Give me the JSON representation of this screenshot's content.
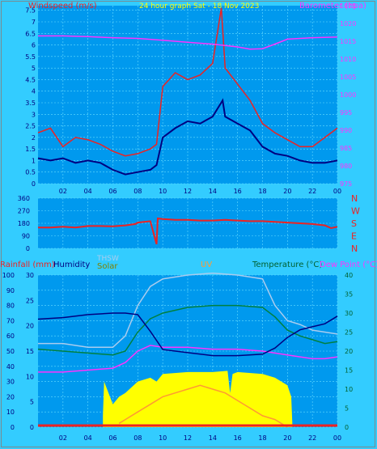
{
  "colors": {
    "background": "#33ccff",
    "plot_background": "#0099ee",
    "grid": "#66ddff",
    "wind_gust": "#ee2222",
    "wind_avg": "#000080",
    "barometer": "#ff33ff",
    "direction": "#ee2222",
    "yellow_title": "#ffff00",
    "rain": "#ee2222",
    "humidity": "#000080",
    "thsw": "#aaccee",
    "solar": "#ffff00",
    "uv": "#ff9933",
    "temperature": "#008040",
    "dew_point": "#ff33ff"
  },
  "chart_data": [
    {
      "type": "line",
      "title": "24 hour graph Sat - 18 Nov 2023",
      "ylabel_left": "Windspeed (m/s)",
      "ylabel_right": "Barometer (hpa)",
      "x_ticks": [
        "02",
        "04",
        "06",
        "08",
        "10",
        "12",
        "14",
        "16",
        "18",
        "20",
        "22",
        "00"
      ],
      "yleft_ticks": [
        "0",
        "0.5",
        "1",
        "1.5",
        "2",
        "2.5",
        "3",
        "3.5",
        "4",
        "4.5",
        "5",
        "5.5",
        "6",
        "6.5",
        "7",
        "7.5"
      ],
      "yright_ticks": [
        "975",
        "980",
        "985",
        "990",
        "995",
        "1000",
        "1005",
        "1010",
        "1015",
        "1020",
        "1025"
      ],
      "ylim_left": [
        0,
        7.7
      ],
      "ylim_right": [
        975,
        1025
      ],
      "xlim_hours": [
        0,
        24
      ],
      "series": [
        {
          "name": "Wind gust",
          "x_hours": [
            0,
            1,
            2,
            3,
            4,
            5,
            6,
            7,
            8,
            9,
            9.5,
            10,
            11,
            12,
            13,
            14,
            14.7,
            15,
            16,
            17,
            18,
            19,
            20,
            21,
            22,
            23,
            24
          ],
          "values": [
            2.2,
            2.4,
            1.6,
            2.0,
            1.9,
            1.7,
            1.4,
            1.2,
            1.3,
            1.5,
            1.7,
            4.2,
            4.8,
            4.5,
            4.7,
            5.2,
            7.6,
            5.0,
            4.3,
            3.6,
            2.6,
            2.2,
            1.9,
            1.6,
            1.6,
            2.0,
            2.4
          ]
        },
        {
          "name": "Wind average",
          "x_hours": [
            0,
            1,
            2,
            3,
            4,
            5,
            6,
            7,
            8,
            9,
            9.5,
            10,
            11,
            12,
            13,
            14,
            14.8,
            15,
            16,
            17,
            18,
            19,
            20,
            21,
            22,
            23,
            24
          ],
          "values": [
            1.1,
            1.0,
            1.1,
            0.9,
            1.0,
            0.9,
            0.6,
            0.4,
            0.5,
            0.6,
            0.8,
            2.0,
            2.4,
            2.7,
            2.6,
            2.9,
            3.6,
            2.9,
            2.6,
            2.3,
            1.6,
            1.3,
            1.2,
            1.0,
            0.9,
            0.9,
            1.0
          ]
        },
        {
          "name": "Barometer",
          "x_hours": [
            0,
            2,
            4,
            6,
            8,
            10,
            12,
            14,
            16,
            17,
            18,
            19,
            20,
            22,
            24
          ],
          "values": [
            1016.5,
            1016.5,
            1016.3,
            1016.0,
            1015.8,
            1015.3,
            1014.7,
            1014.2,
            1013.4,
            1012.8,
            1012.9,
            1014.2,
            1015.6,
            1016.0,
            1016.2
          ]
        }
      ]
    },
    {
      "type": "scatter",
      "yright_label_ticks": [
        "N",
        "W",
        "S",
        "E",
        "N"
      ],
      "yleft_ticks": [
        "0",
        "90",
        "180",
        "270",
        "360"
      ],
      "ylim": [
        0,
        360
      ],
      "xlim_hours": [
        0,
        24
      ],
      "series": [
        {
          "name": "Wind direction",
          "x_hours": [
            0,
            1,
            2,
            3,
            4,
            5,
            6,
            7,
            7.8,
            8,
            9,
            9.5,
            9.6,
            10,
            11,
            12,
            13,
            14,
            15,
            16,
            17,
            18,
            19,
            20,
            21,
            22,
            23,
            23.5,
            24
          ],
          "values": [
            150,
            150,
            155,
            150,
            160,
            160,
            158,
            165,
            175,
            185,
            195,
            30,
            215,
            210,
            205,
            205,
            200,
            200,
            205,
            200,
            195,
            195,
            190,
            185,
            180,
            175,
            165,
            145,
            155
          ]
        }
      ]
    },
    {
      "type": "line",
      "ylabels": {
        "rain": "Rainfall (mm)",
        "humidity": "Humidity",
        "thsw": "THSW",
        "solar": "Solar",
        "uv": "UV",
        "temperature": "Temperature (°C)",
        "dew_point": "Dew Point (°C)"
      },
      "y_humidity_ticks": [
        "0",
        "10",
        "20",
        "30",
        "40",
        "50",
        "60",
        "70",
        "80",
        "90",
        "100"
      ],
      "y_rain_ticks": [
        "0",
        "5",
        "10",
        "15",
        "20",
        "25",
        "30"
      ],
      "y_temp_ticks": [
        "0",
        "5",
        "10",
        "15",
        "20",
        "25",
        "30",
        "35",
        "40"
      ],
      "x_ticks": [
        "02",
        "04",
        "06",
        "08",
        "10",
        "12",
        "14",
        "16",
        "18",
        "20",
        "22",
        "00"
      ],
      "xlim_hours": [
        0,
        24
      ],
      "ylim_humidity": [
        0,
        100
      ],
      "ylim_temp": [
        0,
        40
      ],
      "series": [
        {
          "name": "Humidity",
          "x_hours": [
            0,
            2,
            4,
            6,
            7,
            8,
            9,
            10,
            12,
            14,
            16,
            18,
            19,
            20,
            21,
            22,
            23,
            24
          ],
          "values": [
            71,
            72,
            74,
            75,
            75,
            74,
            63,
            51,
            49,
            47,
            47,
            48,
            52,
            59,
            64,
            66,
            68,
            73
          ]
        },
        {
          "name": "Temperature",
          "x_hours": [
            0,
            2,
            4,
            6,
            7,
            8,
            9,
            10,
            12,
            14,
            16,
            18,
            19,
            20,
            21,
            22,
            23,
            24
          ],
          "values": [
            20.5,
            20,
            19.5,
            19,
            20,
            25,
            28.5,
            30,
            31.5,
            32,
            32,
            31.5,
            29,
            25.5,
            24,
            23,
            22,
            22.5
          ]
        },
        {
          "name": "THSW",
          "x_hours": [
            0,
            2,
            4,
            6,
            7,
            8,
            9,
            10,
            12,
            14,
            16,
            18,
            19,
            20,
            21,
            22,
            23,
            24
          ],
          "values": [
            22,
            22,
            21,
            21,
            24,
            32,
            37,
            39,
            40,
            40.5,
            40,
            39,
            32,
            28,
            27,
            25.5,
            25,
            24.5
          ]
        },
        {
          "name": "Dew Point",
          "x_hours": [
            0,
            2,
            4,
            6,
            7,
            8,
            9,
            10,
            12,
            14,
            16,
            18,
            19,
            20,
            21,
            22,
            23,
            24
          ],
          "values": [
            14.5,
            14.5,
            15,
            15.5,
            17,
            20,
            21.5,
            21,
            21,
            20.5,
            20.5,
            20,
            19.5,
            19,
            18.5,
            18,
            18,
            18.5
          ]
        },
        {
          "name": "Solar",
          "x_hours": [
            5.2,
            5.3,
            6,
            6.5,
            7,
            8,
            9,
            9.5,
            10,
            12,
            14,
            15.2,
            15.4,
            15.6,
            16,
            18,
            19,
            20,
            20.3,
            20.4
          ],
          "values": [
            3,
            12,
            6,
            8,
            9,
            12,
            13,
            12,
            14,
            14.5,
            14.5,
            14.8,
            9,
            14,
            14.5,
            14,
            13,
            11,
            8,
            0
          ]
        },
        {
          "name": "UV",
          "x_hours": [
            6.5,
            7,
            8,
            9,
            10,
            11,
            12,
            13,
            14,
            15,
            16,
            17,
            18,
            19,
            20
          ],
          "values": [
            1,
            2,
            4,
            6,
            8,
            9,
            10,
            11,
            10,
            9,
            7,
            5,
            3,
            2,
            0
          ]
        },
        {
          "name": "Rainfall",
          "x_hours": [
            0,
            24
          ],
          "values": [
            0,
            0
          ]
        }
      ]
    }
  ]
}
